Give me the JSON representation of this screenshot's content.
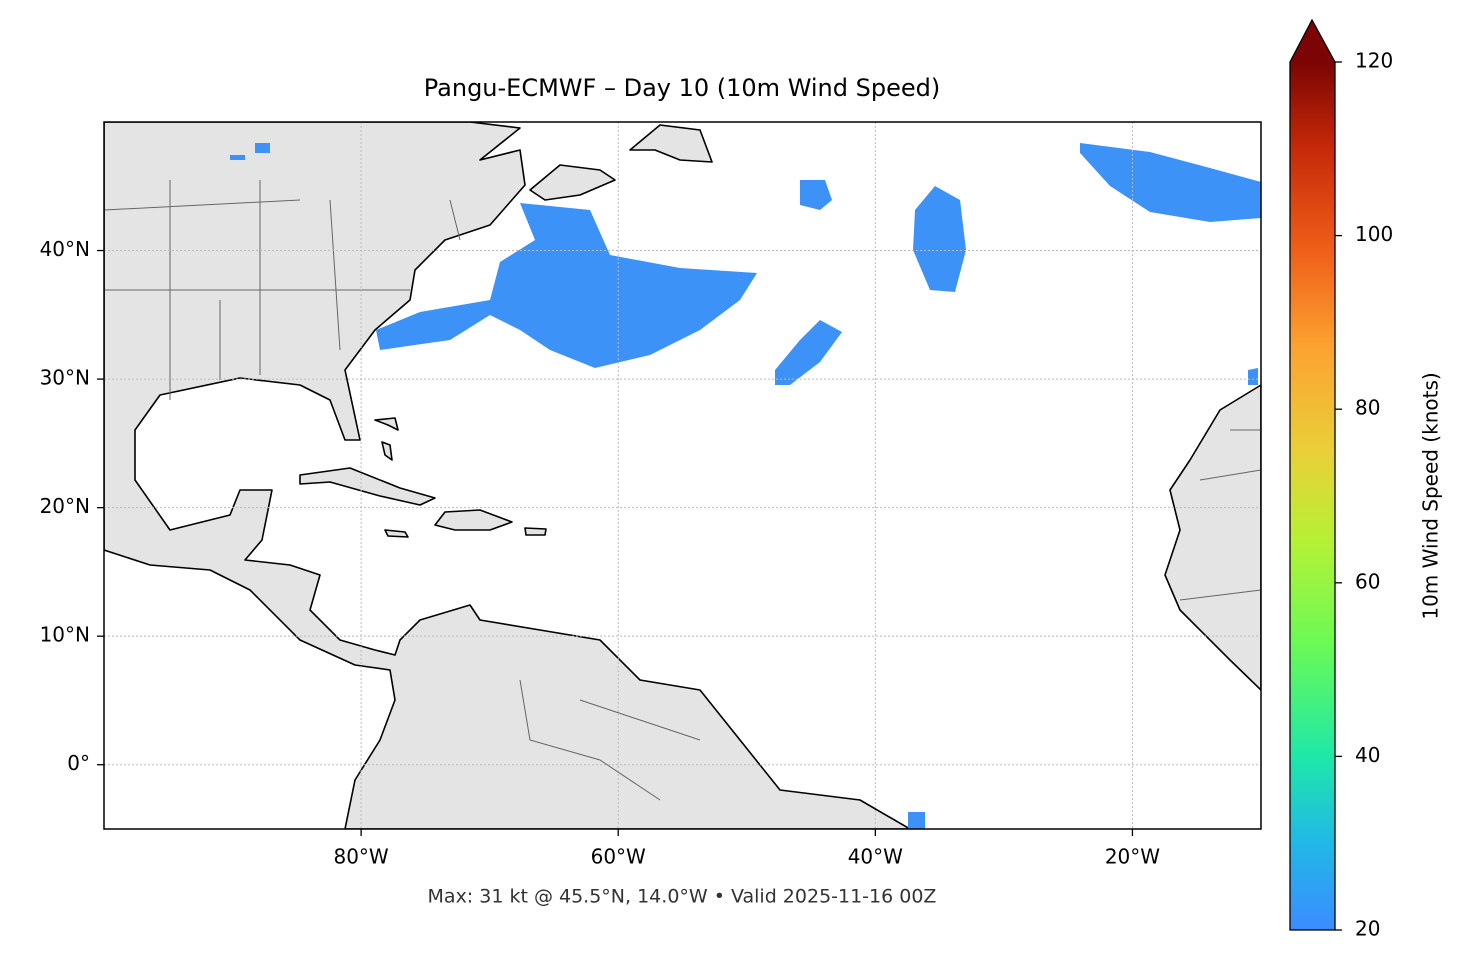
{
  "map_data": {
    "title": "Pangu-ECMWF – Day 10 (10m Wind Speed)",
    "xlim": [
      -100,
      -10
    ],
    "ylim": [
      -5,
      50
    ],
    "xticks": [
      {
        "value": -80,
        "label": "80°W"
      },
      {
        "value": -60,
        "label": "60°W"
      },
      {
        "value": -40,
        "label": "40°W"
      },
      {
        "value": -20,
        "label": "20°W"
      }
    ],
    "yticks": [
      {
        "value": 40,
        "label": "40°N"
      },
      {
        "value": 30,
        "label": "30°N"
      },
      {
        "value": 20,
        "label": "20°N"
      },
      {
        "value": 10,
        "label": "10°N"
      },
      {
        "value": 0,
        "label": "0°"
      }
    ],
    "grid": true,
    "footer": "Max: 31 kt @ 45.5°N, 14.0°W • Valid 2025-11-16 00Z",
    "colorbar": {
      "label": "10m Wind Speed (knots)",
      "lim": [
        20,
        120
      ],
      "ticks": [
        20,
        40,
        60,
        80,
        100,
        120
      ]
    }
  }
}
